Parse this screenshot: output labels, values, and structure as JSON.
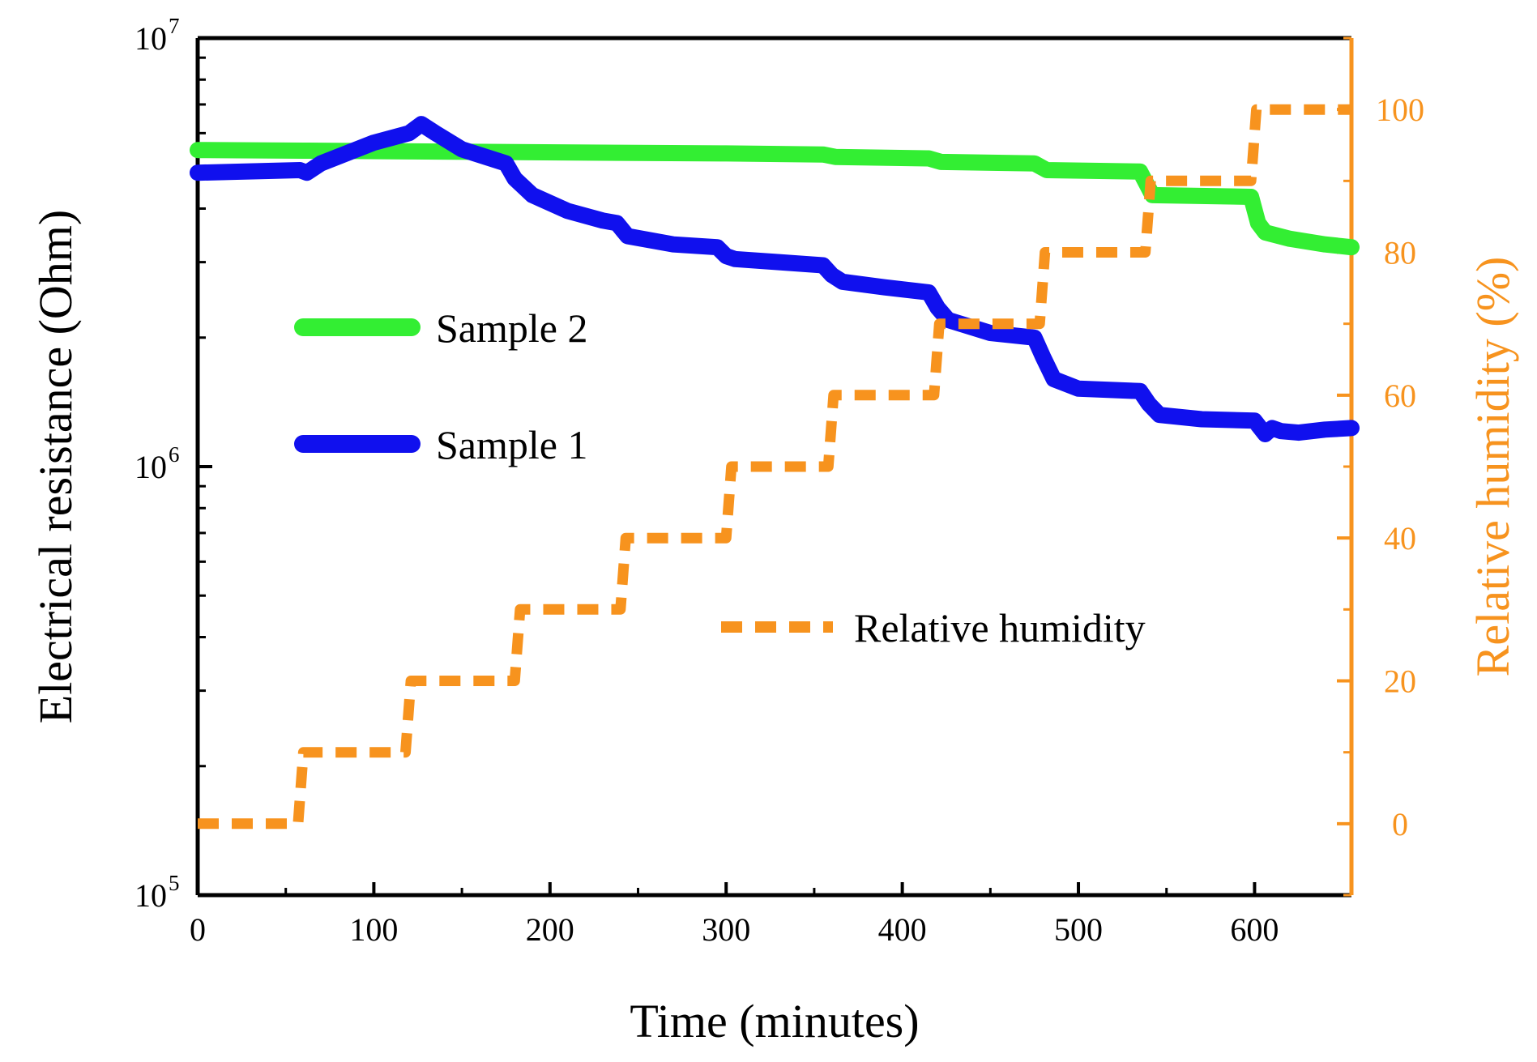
{
  "chart_data": {
    "type": "line",
    "xlabel": "Time (minutes)",
    "ylabel": "Electrical resistance (Ohm)",
    "y2label": "Relative humidity (%)",
    "xlim": [
      0,
      655
    ],
    "ylim": [
      100000,
      10000000
    ],
    "y_scale": "log",
    "y2lim": [
      -10,
      110
    ],
    "x_ticks": [
      0,
      100,
      200,
      300,
      400,
      500,
      600
    ],
    "y_ticks": [
      {
        "base": "10",
        "exp": "5",
        "value": 100000
      },
      {
        "base": "10",
        "exp": "6",
        "value": 1000000
      },
      {
        "base": "10",
        "exp": "7",
        "value": 10000000
      }
    ],
    "y2_ticks": [
      0,
      20,
      40,
      60,
      80,
      100
    ],
    "legend": [
      {
        "label": "Sample 2",
        "color": "#33EE33",
        "style": "solid"
      },
      {
        "label": "Sample 1",
        "color": "#1010EE",
        "style": "solid"
      },
      {
        "label": "Relative humidity",
        "color": "#F7931E",
        "style": "dashed"
      }
    ],
    "series": [
      {
        "name": "Sample 2",
        "color": "#33EE33",
        "axis": "left",
        "x": [
          0,
          60,
          120,
          180,
          240,
          300,
          355,
          362,
          415,
          422,
          475,
          482,
          535,
          542,
          598,
          602,
          606,
          620,
          640,
          655
        ],
        "values": [
          5480000,
          5460000,
          5440000,
          5420000,
          5400000,
          5380000,
          5350000,
          5280000,
          5240000,
          5140000,
          5100000,
          4920000,
          4880000,
          4300000,
          4260000,
          3700000,
          3520000,
          3400000,
          3300000,
          3250000
        ]
      },
      {
        "name": "Sample 1",
        "color": "#1010EE",
        "axis": "left",
        "x": [
          0,
          58,
          62,
          70,
          100,
          120,
          127,
          135,
          150,
          175,
          180,
          190,
          210,
          230,
          238,
          244,
          270,
          295,
          300,
          305,
          330,
          355,
          360,
          366,
          390,
          415,
          420,
          426,
          450,
          475,
          480,
          486,
          500,
          535,
          540,
          546,
          570,
          600,
          606,
          610,
          615,
          625,
          640,
          655
        ],
        "values": [
          4850000,
          4920000,
          4850000,
          5100000,
          5700000,
          6000000,
          6300000,
          6000000,
          5500000,
          5100000,
          4700000,
          4300000,
          3950000,
          3750000,
          3700000,
          3450000,
          3300000,
          3250000,
          3100000,
          3050000,
          3000000,
          2950000,
          2800000,
          2700000,
          2620000,
          2550000,
          2350000,
          2200000,
          2050000,
          2000000,
          1800000,
          1600000,
          1520000,
          1500000,
          1400000,
          1320000,
          1290000,
          1280000,
          1190000,
          1230000,
          1210000,
          1200000,
          1220000,
          1230000
        ]
      },
      {
        "name": "Relative humidity",
        "color": "#F7931E",
        "axis": "right",
        "x": [
          0,
          57,
          60,
          118,
          121,
          180,
          183,
          240,
          243,
          300,
          303,
          358,
          361,
          418,
          421,
          478,
          481,
          538,
          541,
          598,
          601,
          655
        ],
        "values": [
          0,
          0,
          10,
          10,
          20,
          20,
          30,
          30,
          40,
          40,
          50,
          50,
          60,
          60,
          70,
          70,
          80,
          80,
          90,
          90,
          100,
          100
        ]
      }
    ]
  }
}
